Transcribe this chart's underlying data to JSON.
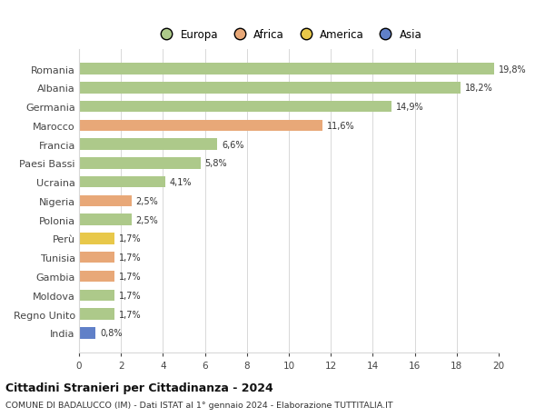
{
  "categories": [
    "Romania",
    "Albania",
    "Germania",
    "Marocco",
    "Francia",
    "Paesi Bassi",
    "Ucraina",
    "Nigeria",
    "Polonia",
    "Perù",
    "Tunisia",
    "Gambia",
    "Moldova",
    "Regno Unito",
    "India"
  ],
  "values": [
    19.8,
    18.2,
    14.9,
    11.6,
    6.6,
    5.8,
    4.1,
    2.5,
    2.5,
    1.7,
    1.7,
    1.7,
    1.7,
    1.7,
    0.8
  ],
  "labels": [
    "19,8%",
    "18,2%",
    "14,9%",
    "11,6%",
    "6,6%",
    "5,8%",
    "4,1%",
    "2,5%",
    "2,5%",
    "1,7%",
    "1,7%",
    "1,7%",
    "1,7%",
    "1,7%",
    "0,8%"
  ],
  "colors": [
    "#adc98a",
    "#adc98a",
    "#adc98a",
    "#e8a878",
    "#adc98a",
    "#adc98a",
    "#adc98a",
    "#e8a878",
    "#adc98a",
    "#e8c84a",
    "#e8a878",
    "#e8a878",
    "#adc98a",
    "#adc98a",
    "#6080c8"
  ],
  "legend": [
    {
      "label": "Europa",
      "color": "#adc98a"
    },
    {
      "label": "Africa",
      "color": "#e8a878"
    },
    {
      "label": "America",
      "color": "#e8c84a"
    },
    {
      "label": "Asia",
      "color": "#6080c8"
    }
  ],
  "title": "Cittadini Stranieri per Cittadinanza - 2024",
  "subtitle": "COMUNE DI BADALUCCO (IM) - Dati ISTAT al 1° gennaio 2024 - Elaborazione TUTTITALIA.IT",
  "xlim": [
    0,
    20
  ],
  "xticks": [
    0,
    2,
    4,
    6,
    8,
    10,
    12,
    14,
    16,
    18,
    20
  ],
  "background_color": "#ffffff",
  "grid_color": "#d8d8d8"
}
